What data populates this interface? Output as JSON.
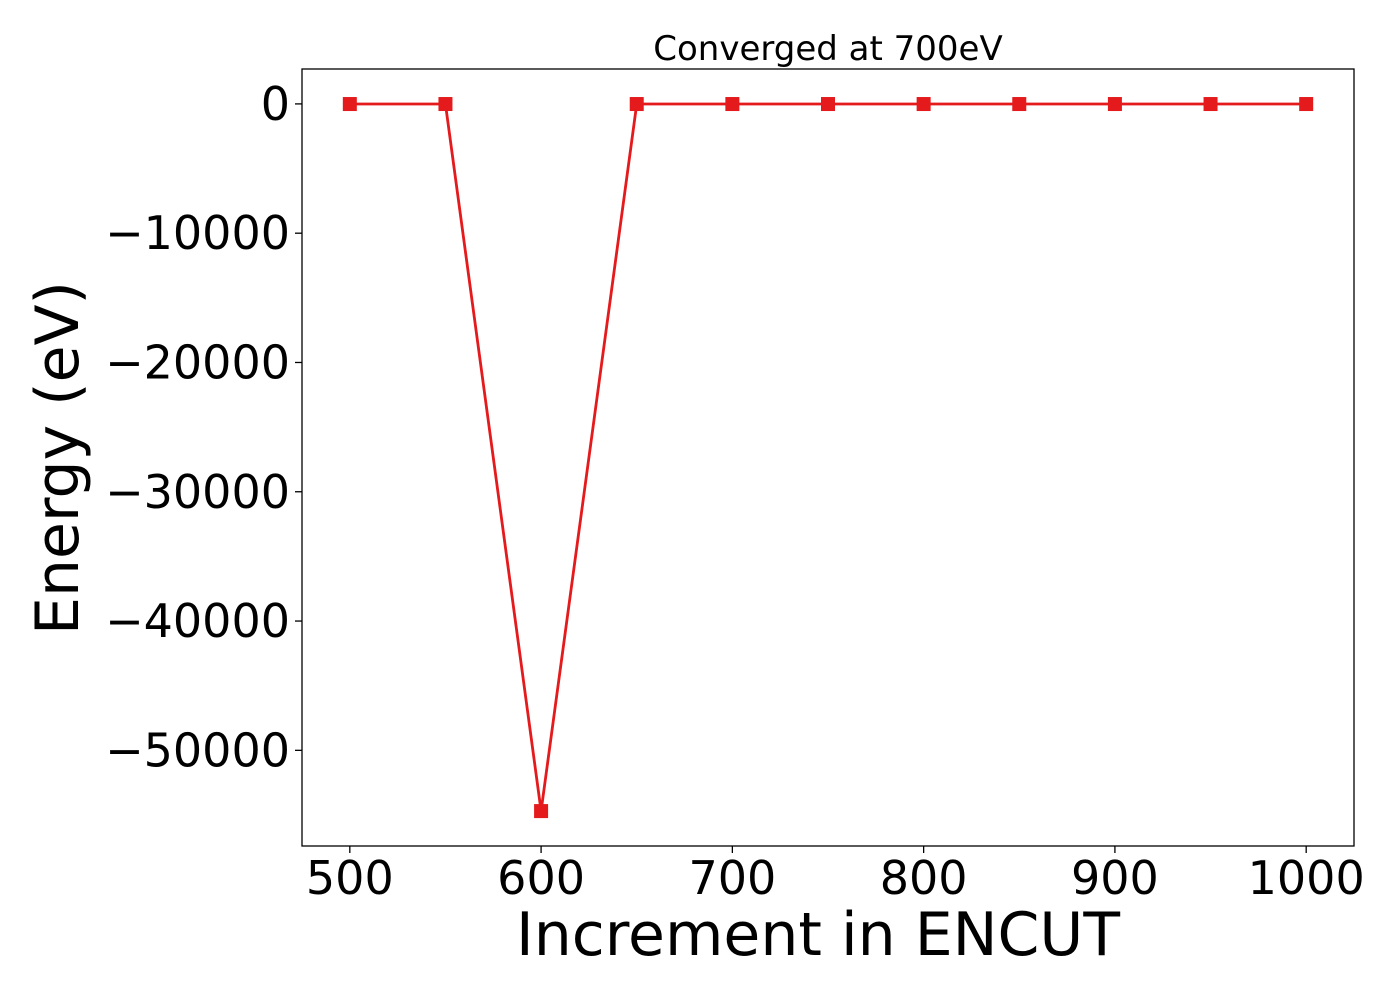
{
  "chart_data": {
    "type": "line",
    "title": "Converged at 700eV",
    "xlabel": "Increment in ENCUT",
    "ylabel": "Energy (eV)",
    "xlim": [
      475,
      1025
    ],
    "ylim": [
      -57400,
      2700
    ],
    "x_ticks": [
      500,
      600,
      700,
      800,
      900,
      1000
    ],
    "x_tick_labels": [
      "500",
      "600",
      "700",
      "800",
      "900",
      "1000"
    ],
    "y_ticks": [
      0,
      -10000,
      -20000,
      -30000,
      -40000,
      -50000
    ],
    "y_tick_labels": [
      "0",
      "−10000",
      "−20000",
      "−30000",
      "−40000",
      "−50000"
    ],
    "grid": false,
    "legend": "none",
    "series": [
      {
        "color": "#e41a1c",
        "marker": "square",
        "x": [
          500,
          550,
          600,
          650,
          700,
          750,
          800,
          850,
          900,
          950,
          1000
        ],
        "y": [
          -10,
          -10,
          -54700,
          -10,
          -10,
          -10,
          -10,
          -10,
          -10,
          -10,
          -10
        ]
      }
    ]
  }
}
